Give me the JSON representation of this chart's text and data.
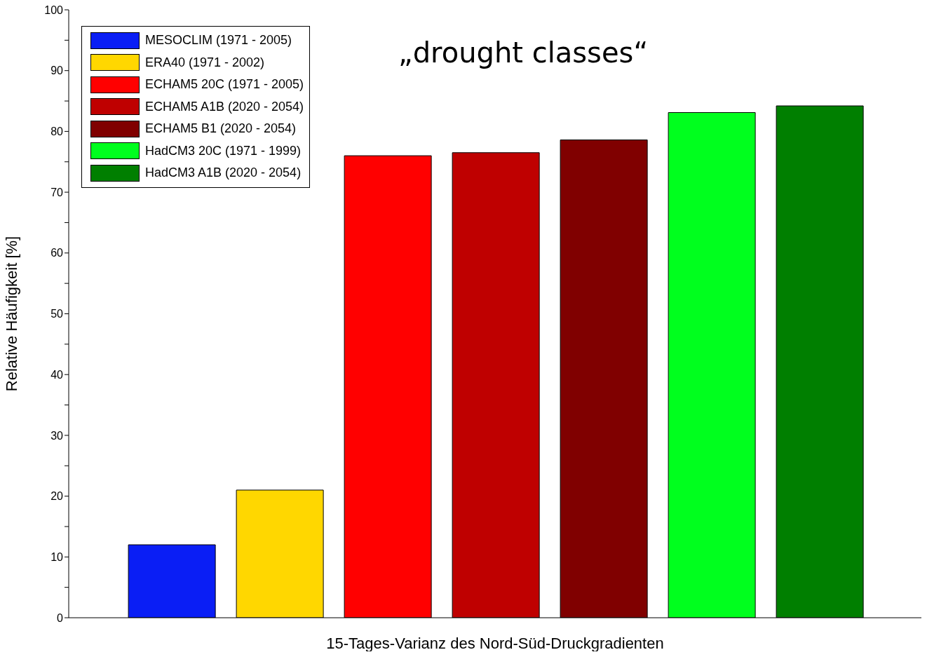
{
  "chart_data": {
    "type": "bar",
    "title": "„drought classes“",
    "xlabel": "15-Tages-Varianz des Nord-Süd-Druckgradienten",
    "ylabel": "Relative Häufigkeit [%]",
    "categories": [
      null
    ],
    "series": [
      {
        "name": "MESOCLIM (1971 - 2005)",
        "color": "#0a1ef5",
        "values": [
          12
        ]
      },
      {
        "name": "ERA40 (1971 - 2002)",
        "color": "#ffd700",
        "values": [
          21
        ]
      },
      {
        "name": "ECHAM5 20C (1971 - 2005)",
        "color": "#ff0000",
        "values": [
          76
        ]
      },
      {
        "name": "ECHAM5 A1B (2020 - 2054)",
        "color": "#bf0000",
        "values": [
          76.5
        ]
      },
      {
        "name": "ECHAM5 B1 (2020 - 2054)",
        "color": "#800000",
        "values": [
          78.6
        ]
      },
      {
        "name": "HadCM3 20C (1971 - 1999)",
        "color": "#00ff1e",
        "values": [
          83.1
        ]
      },
      {
        "name": "HadCM3 A1B (2020 - 2054)",
        "color": "#007f00",
        "values": [
          84.2
        ]
      }
    ],
    "ylim": [
      0,
      100
    ],
    "yticks": [
      0,
      {
        "value": 5,
        "label": null
      },
      10,
      {
        "value": 15,
        "label": null
      },
      20,
      {
        "value": 25,
        "label": null
      },
      30,
      {
        "value": 35,
        "label": null
      },
      40,
      {
        "value": 45,
        "label": null
      },
      50,
      {
        "value": 55,
        "label": null
      },
      60,
      {
        "value": 65,
        "label": null
      },
      70,
      {
        "value": 75,
        "label": null
      },
      80,
      {
        "value": 85,
        "label": null
      },
      90,
      {
        "value": 95,
        "label": null
      },
      100
    ],
    "legend": "top left",
    "tick_labels": "y"
  }
}
